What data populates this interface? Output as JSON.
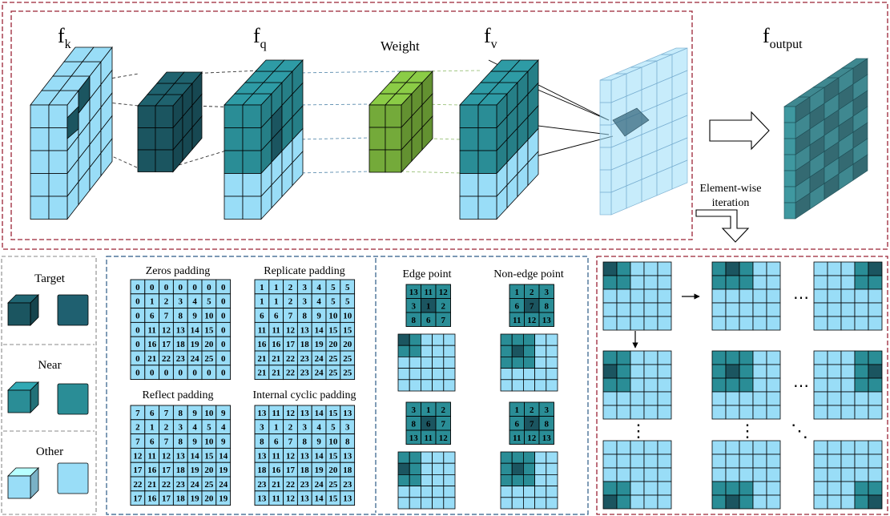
{
  "top": {
    "fk": {
      "base": "f",
      "sub": "k"
    },
    "fq": {
      "base": "f",
      "sub": "q"
    },
    "weight": "Weight",
    "fv": {
      "base": "f",
      "sub": "v"
    },
    "foutput": {
      "base": "f",
      "sub": "output"
    },
    "iteration_label": [
      "Element-wise",
      "iteration"
    ]
  },
  "legend": {
    "target": "Target",
    "near": "Near",
    "other": "Other"
  },
  "padding": {
    "zeros": {
      "title": "Zeros padding",
      "grid": [
        [
          "0",
          "0",
          "0",
          "0",
          "0",
          "0",
          "0"
        ],
        [
          "0",
          "1",
          "2",
          "3",
          "4",
          "5",
          "0"
        ],
        [
          "0",
          "6",
          "7",
          "8",
          "9",
          "10",
          "0"
        ],
        [
          "0",
          "11",
          "12",
          "13",
          "14",
          "15",
          "0"
        ],
        [
          "0",
          "16",
          "17",
          "18",
          "19",
          "20",
          "0"
        ],
        [
          "0",
          "21",
          "22",
          "23",
          "24",
          "25",
          "0"
        ],
        [
          "0",
          "0",
          "0",
          "0",
          "0",
          "0",
          "0"
        ]
      ]
    },
    "replicate": {
      "title": "Replicate padding",
      "grid": [
        [
          "1",
          "1",
          "2",
          "3",
          "4",
          "5",
          "5"
        ],
        [
          "1",
          "1",
          "2",
          "3",
          "4",
          "5",
          "5"
        ],
        [
          "6",
          "6",
          "7",
          "8",
          "9",
          "10",
          "10"
        ],
        [
          "11",
          "11",
          "12",
          "13",
          "14",
          "15",
          "15"
        ],
        [
          "16",
          "16",
          "17",
          "18",
          "19",
          "20",
          "20"
        ],
        [
          "21",
          "21",
          "22",
          "23",
          "24",
          "25",
          "25"
        ],
        [
          "21",
          "21",
          "22",
          "23",
          "24",
          "25",
          "25"
        ]
      ]
    },
    "reflect": {
      "title": "Reflect padding",
      "grid": [
        [
          "7",
          "6",
          "7",
          "8",
          "9",
          "10",
          "9"
        ],
        [
          "2",
          "1",
          "2",
          "3",
          "4",
          "5",
          "4"
        ],
        [
          "7",
          "6",
          "7",
          "8",
          "9",
          "10",
          "9"
        ],
        [
          "12",
          "11",
          "12",
          "13",
          "14",
          "15",
          "14"
        ],
        [
          "17",
          "16",
          "17",
          "18",
          "19",
          "20",
          "19"
        ],
        [
          "22",
          "21",
          "22",
          "23",
          "24",
          "25",
          "24"
        ],
        [
          "17",
          "16",
          "17",
          "18",
          "19",
          "20",
          "19"
        ]
      ]
    },
    "cyclic": {
      "title": "Internal cyclic padding",
      "grid": [
        [
          "13",
          "11",
          "12",
          "13",
          "14",
          "15",
          "13"
        ],
        [
          "3",
          "1",
          "2",
          "3",
          "4",
          "5",
          "3"
        ],
        [
          "8",
          "6",
          "7",
          "8",
          "9",
          "10",
          "8"
        ],
        [
          "13",
          "11",
          "12",
          "13",
          "14",
          "15",
          "13"
        ],
        [
          "18",
          "16",
          "17",
          "18",
          "19",
          "20",
          "18"
        ],
        [
          "23",
          "21",
          "22",
          "23",
          "24",
          "25",
          "23"
        ],
        [
          "13",
          "11",
          "12",
          "13",
          "14",
          "15",
          "13"
        ]
      ]
    }
  },
  "points": {
    "edge_title": "Edge point",
    "nonedge_title": "Non-edge point",
    "edge_a": [
      [
        "13",
        "11",
        "12"
      ],
      [
        "3",
        "1",
        "2"
      ],
      [
        "8",
        "6",
        "7"
      ]
    ],
    "nonedge_a": [
      [
        "1",
        "2",
        "3"
      ],
      [
        "6",
        "7",
        "8"
      ],
      [
        "11",
        "12",
        "13"
      ]
    ],
    "edge_b": [
      [
        "3",
        "1",
        "2"
      ],
      [
        "8",
        "6",
        "7"
      ],
      [
        "13",
        "11",
        "12"
      ]
    ],
    "nonedge_b": [
      [
        "1",
        "2",
        "3"
      ],
      [
        "6",
        "7",
        "8"
      ],
      [
        "11",
        "12",
        "13"
      ]
    ]
  },
  "iteration": {
    "dots_h": "⋯",
    "dots_v": "⋮",
    "dots_d": "⋱"
  },
  "colors": {
    "light": "#99ddf7",
    "mid": "#2a8d96",
    "dark": "#1b5560",
    "green": "#74aa3a",
    "border_red": "#9b2335",
    "border_blue": "#2c5b86",
    "border_gray": "#888888"
  }
}
